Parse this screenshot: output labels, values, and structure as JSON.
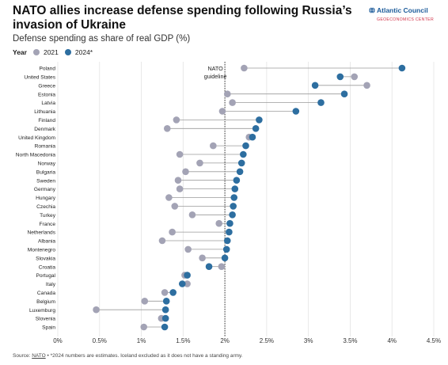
{
  "header": {
    "title": "NATO allies increase defense spending following Russia’s invasion of Ukraine",
    "subtitle": "Defense spending as share of real GDP (%)"
  },
  "legend": {
    "title": "Year",
    "items": [
      {
        "label": "2021",
        "color": "#a3a3b5"
      },
      {
        "label": "2024*",
        "color": "#2d6ea0"
      }
    ]
  },
  "brand": {
    "name": "Atlantic Council",
    "sub": "GEOECONOMICS CENTER",
    "icon": "globe-icon"
  },
  "source": {
    "prefix": "Source: ",
    "link": "NATO",
    "note": " • *2024 numbers are estimates. Iceland excluded as it does not have a standing army."
  },
  "chart_data": {
    "type": "dumbbell",
    "xlim": [
      0,
      4.5
    ],
    "xticks": [
      "0%",
      "0.5%",
      "1%",
      "1.5%",
      "2%",
      "2.5%",
      "3%",
      "3.5%",
      "4%",
      "4.5%"
    ],
    "grid": true,
    "legend_position": "top-left",
    "reference_line": {
      "value": 2.0,
      "label": "NATO guideline"
    },
    "categories": [
      "Poland",
      "United States",
      "Greece",
      "Estonia",
      "Latvia",
      "Lithuania",
      "Finland",
      "Denmark",
      "United Kingdom",
      "Romania",
      "North Macedonia",
      "Norway",
      "Bulgaria",
      "Sweden",
      "Germany",
      "Hungary",
      "Czechia",
      "Turkey",
      "France",
      "Netherlands",
      "Albania",
      "Montenegro",
      "Slovakia",
      "Croatia",
      "Portugal",
      "Italy",
      "Canada",
      "Belgium",
      "Luxemburg",
      "Slovenia",
      "Spain"
    ],
    "series": [
      {
        "name": "2021",
        "color": "#a3a3b5",
        "values": [
          2.23,
          3.55,
          3.7,
          2.03,
          2.09,
          1.97,
          1.42,
          1.31,
          2.29,
          1.86,
          1.46,
          1.7,
          1.53,
          1.44,
          1.46,
          1.33,
          1.4,
          1.61,
          1.93,
          1.37,
          1.25,
          1.56,
          1.73,
          1.96,
          1.52,
          1.55,
          1.28,
          1.04,
          0.46,
          1.24,
          1.03
        ]
      },
      {
        "name": "2024*",
        "color": "#2d6ea0",
        "values": [
          4.12,
          3.38,
          3.08,
          3.43,
          3.15,
          2.85,
          2.41,
          2.37,
          2.33,
          2.25,
          2.22,
          2.2,
          2.18,
          2.14,
          2.12,
          2.11,
          2.1,
          2.09,
          2.06,
          2.05,
          2.03,
          2.02,
          2.0,
          1.81,
          1.55,
          1.49,
          1.38,
          1.3,
          1.29,
          1.29,
          1.28
        ]
      }
    ]
  }
}
